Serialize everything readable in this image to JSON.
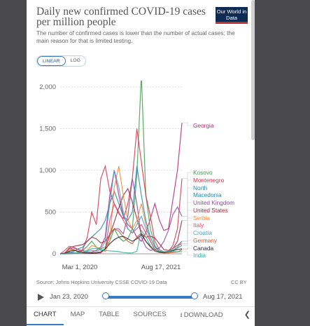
{
  "page": {
    "title": "Daily new confirmed COVID-19 cases per million people",
    "subtitle": "The number of confirmed cases is lower than the number of actual cases; the main reason for that is limited testing.",
    "logo": "Our World in Data",
    "toggle": {
      "linear": "LINEAR",
      "log": "LOG"
    },
    "source": "Source: Johns Hopkins University CSSE COVID-19 Data",
    "license": "CC BY",
    "timeline": {
      "start": "Jan 23, 2020",
      "end": "Aug 17, 2021"
    },
    "tabs": [
      "CHART",
      "MAP",
      "TABLE",
      "SOURCES",
      "DOWNLOAD"
    ],
    "icons": {
      "play": "play-icon",
      "download": "download-icon",
      "share": "share-icon"
    }
  },
  "chart_data": {
    "type": "line",
    "title": "Daily new confirmed COVID-19 cases per million people",
    "xlim": [
      "2020-01-23",
      "2021-08-17"
    ],
    "x_ticks": [
      "Mar 1, 2020",
      "Aug 17, 2021"
    ],
    "y_ticks": [
      "0",
      "500",
      "1,000",
      "1,500",
      "2,000"
    ],
    "ylim": [
      0,
      2200
    ],
    "grid": "horizontal-dotted",
    "series": [
      {
        "name": "Georgia",
        "color": "#b5267a",
        "values": [
          0,
          0,
          0,
          5,
          10,
          8,
          5,
          20,
          40,
          80,
          200,
          700,
          1000,
          700,
          450,
          350,
          300,
          200,
          150,
          250,
          420,
          600,
          400,
          280,
          300,
          650,
          1000,
          1570
        ]
      },
      {
        "name": "Kosovo",
        "color": "#3f9e47",
        "values": [
          0,
          2,
          5,
          10,
          15,
          40,
          90,
          150,
          80,
          60,
          80,
          150,
          300,
          200,
          150,
          180,
          300,
          950,
          2150,
          700,
          300,
          100,
          30,
          15,
          20,
          40,
          80,
          150
        ]
      },
      {
        "name": "Montenegro",
        "color": "#d6334d",
        "values": [
          0,
          10,
          20,
          10,
          5,
          50,
          200,
          500,
          350,
          900,
          1050,
          750,
          600,
          480,
          420,
          600,
          900,
          1500,
          1100,
          700,
          450,
          150,
          50,
          20,
          30,
          100,
          300,
          900
        ]
      },
      {
        "name": "North Macedonia",
        "color": "#1c8bb0",
        "values": [
          0,
          5,
          10,
          30,
          60,
          80,
          150,
          200,
          250,
          300,
          400,
          600,
          750,
          600,
          450,
          400,
          500,
          1050,
          700,
          400,
          200,
          80,
          30,
          10,
          15,
          30,
          70,
          100
        ]
      },
      {
        "name": "United Kingdom",
        "color": "#8f4aa0",
        "values": [
          0,
          5,
          60,
          70,
          50,
          40,
          20,
          15,
          15,
          20,
          60,
          220,
          300,
          300,
          240,
          450,
          900,
          600,
          200,
          80,
          40,
          50,
          70,
          150,
          280,
          470,
          560,
          450
        ]
      },
      {
        "name": "United States",
        "color": "#9e2a3a",
        "values": [
          0,
          5,
          70,
          90,
          100,
          110,
          150,
          200,
          180,
          130,
          150,
          230,
          380,
          550,
          700,
          780,
          620,
          420,
          240,
          200,
          210,
          190,
          120,
          50,
          40,
          60,
          150,
          400
        ]
      },
      {
        "name": "Serbia",
        "color": "#f08a3a",
        "values": [
          0,
          5,
          40,
          50,
          30,
          20,
          40,
          100,
          80,
          40,
          30,
          150,
          800,
          1050,
          700,
          400,
          300,
          400,
          600,
          350,
          150,
          50,
          20,
          10,
          15,
          30,
          80,
          150
        ]
      },
      {
        "name": "Italy",
        "color": "#d8456e",
        "values": [
          0,
          40,
          90,
          80,
          50,
          20,
          10,
          5,
          5,
          10,
          60,
          400,
          600,
          500,
          400,
          300,
          250,
          300,
          350,
          250,
          150,
          50,
          20,
          15,
          30,
          70,
          100,
          120
        ]
      },
      {
        "name": "Croatia",
        "color": "#4aa3c3",
        "values": [
          0,
          10,
          20,
          15,
          5,
          10,
          30,
          40,
          30,
          50,
          150,
          600,
          1000,
          800,
          500,
          300,
          250,
          350,
          450,
          300,
          200,
          80,
          30,
          20,
          30,
          60,
          100,
          150
        ]
      },
      {
        "name": "Germany",
        "color": "#cc5a2a",
        "values": [
          0,
          10,
          60,
          50,
          20,
          10,
          5,
          10,
          15,
          20,
          60,
          250,
          300,
          270,
          200,
          150,
          120,
          200,
          250,
          150,
          80,
          30,
          15,
          10,
          10,
          15,
          20,
          50
        ]
      },
      {
        "name": "Canada",
        "color": "#2c2c3c",
        "values": [
          0,
          5,
          30,
          40,
          30,
          15,
          10,
          5,
          10,
          20,
          60,
          120,
          170,
          200,
          210,
          180,
          150,
          180,
          230,
          150,
          90,
          40,
          20,
          15,
          25,
          40,
          50,
          60
        ]
      },
      {
        "name": "India",
        "color": "#3ab0a0",
        "values": [
          0,
          0,
          2,
          5,
          10,
          20,
          40,
          60,
          65,
          50,
          40,
          35,
          30,
          25,
          15,
          12,
          10,
          30,
          280,
          200,
          100,
          40,
          30,
          25,
          25,
          25,
          25,
          25
        ]
      }
    ]
  }
}
